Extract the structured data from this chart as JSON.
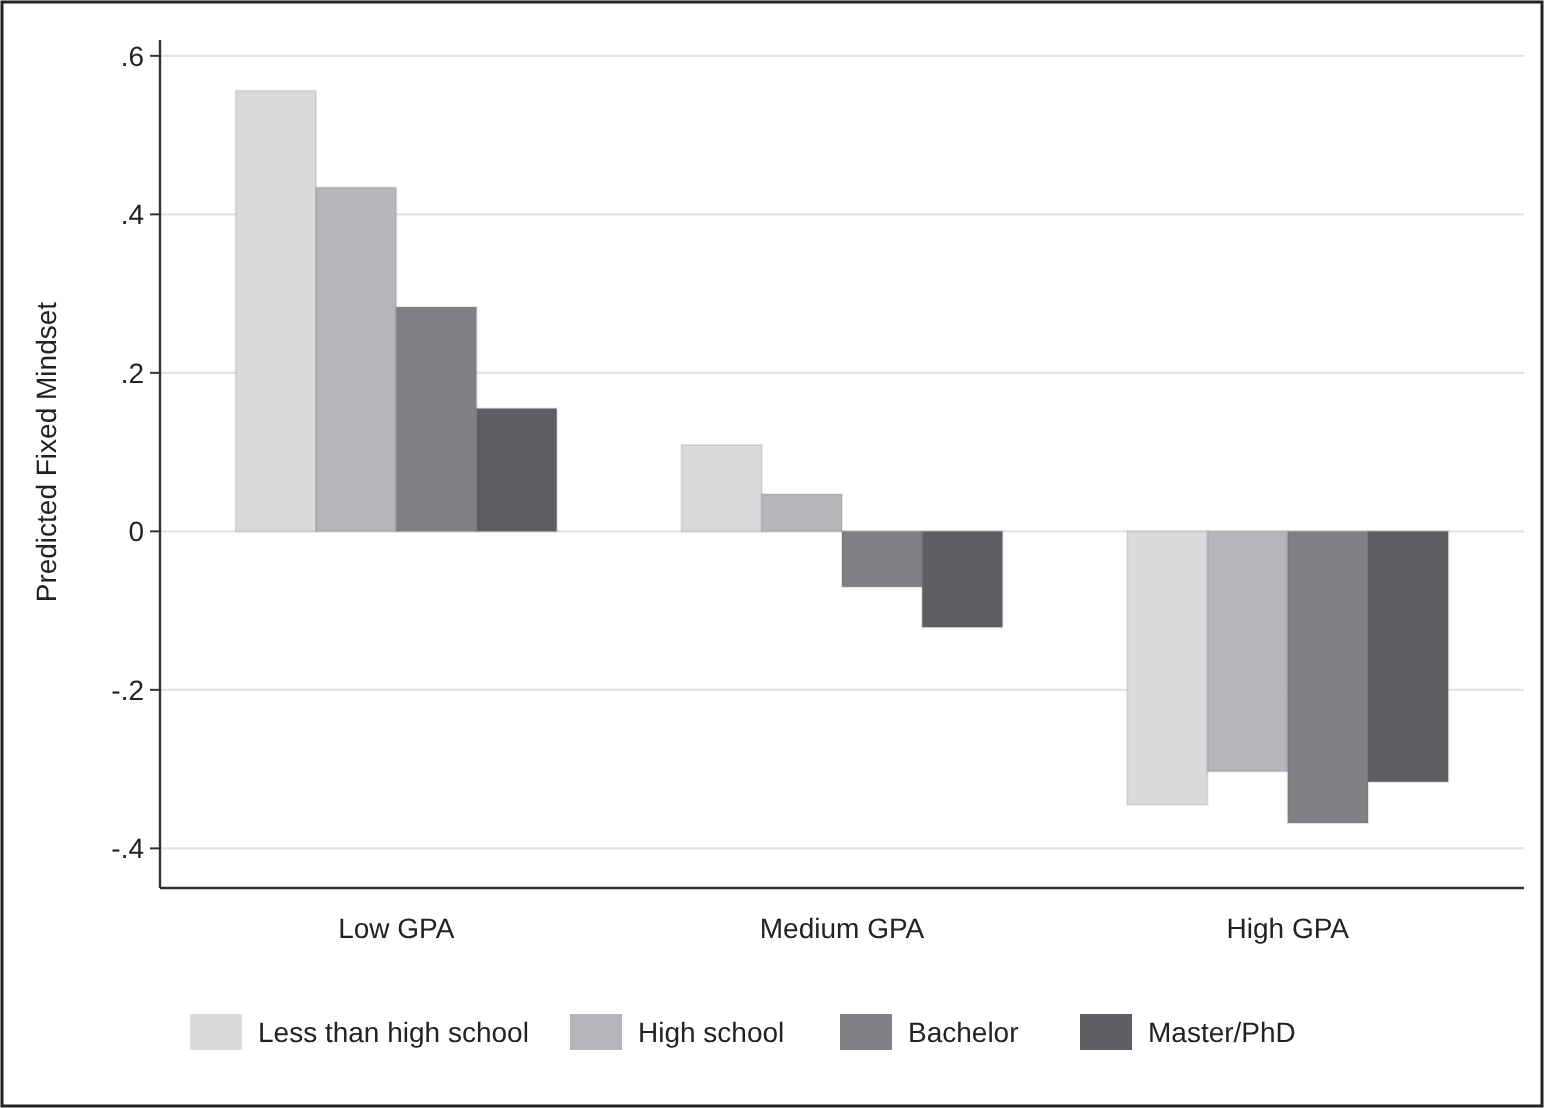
{
  "chart_data": {
    "type": "bar",
    "ylabel": "Predicted Fixed Mindset",
    "categories": [
      "Low GPA",
      "Medium GPA",
      "High GPA"
    ],
    "series": [
      {
        "name": "Less than high school",
        "color": "#d9dadc",
        "values": [
          0.556,
          0.109,
          -0.345
        ]
      },
      {
        "name": "High school",
        "color": "#b5b6b9",
        "values": [
          0.434,
          0.047,
          -0.303
        ]
      },
      {
        "name": "Bachelor",
        "color": "#808184",
        "values": [
          0.283,
          -0.07,
          -0.368
        ]
      },
      {
        "name": "Master/PhD",
        "color": "#5e5f62",
        "values": [
          0.155,
          -0.121,
          -0.316
        ]
      }
    ],
    "ylim": [
      -0.45,
      0.62
    ],
    "yticks": [
      {
        "value": 0.6,
        "label": ".6"
      },
      {
        "value": 0.4,
        "label": ".4"
      },
      {
        "value": 0.2,
        "label": ".2"
      },
      0,
      {
        "value": -0.2,
        "label": "-.2"
      },
      {
        "value": -0.4,
        "label": "-.4"
      }
    ],
    "grid": "y",
    "legend": "bottom"
  }
}
